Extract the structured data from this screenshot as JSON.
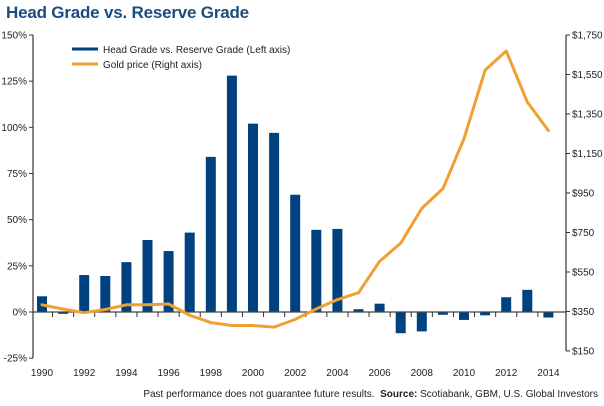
{
  "chart_data": {
    "type": "bar+line",
    "title": "Head Grade vs. Reserve Grade",
    "categories": [
      "1990",
      "1991",
      "1992",
      "1993",
      "1994",
      "1995",
      "1996",
      "1997",
      "1998",
      "1999",
      "2000",
      "2001",
      "2002",
      "2003",
      "2004",
      "2005",
      "2006",
      "2007",
      "2008",
      "2009",
      "2010",
      "2011",
      "2012",
      "2013",
      "2014"
    ],
    "x_tick_labels": [
      "1990",
      "1992",
      "1994",
      "1996",
      "1998",
      "2000",
      "2002",
      "2004",
      "2006",
      "2008",
      "2010",
      "2012",
      "2014"
    ],
    "series": [
      {
        "name": "Head Grade vs. Reserve Grade (Left axis)",
        "type": "bar",
        "axis": "left",
        "color": "#004280",
        "values": [
          8.5,
          -1,
          20,
          19.5,
          27,
          39,
          33,
          43,
          84,
          128,
          102,
          97,
          63.5,
          44.5,
          45,
          1.5,
          4.5,
          -11.5,
          -10.5,
          -1.5,
          -4.3,
          -1.8,
          8,
          12,
          -3
        ]
      },
      {
        "name": "Gold price (Right axis)",
        "type": "line",
        "axis": "right",
        "color": "#f0a030",
        "values": [
          384,
          362,
          344,
          360,
          384,
          384,
          388,
          331,
          294,
          279,
          279,
          271,
          310,
          363,
          410,
          445,
          604,
          696,
          872,
          972,
          1225,
          1572,
          1669,
          1411,
          1266
        ]
      }
    ],
    "left_axis": {
      "ylim": [
        -25,
        150
      ],
      "ticks": [
        -25,
        0,
        25,
        50,
        75,
        100,
        125,
        150
      ],
      "tick_labels": [
        "-25%",
        "0%",
        "25%",
        "50%",
        "75%",
        "100%",
        "125%",
        "150%"
      ]
    },
    "right_axis": {
      "ylim": [
        150,
        1750
      ],
      "ticks": [
        150,
        350,
        550,
        750,
        950,
        1150,
        1350,
        1550,
        1750
      ],
      "tick_labels": [
        "$150",
        "$350",
        "$550",
        "$750",
        "$950",
        "$1,150",
        "$1,350",
        "$1,550",
        "$1,750"
      ]
    },
    "legend": {
      "placement": "top-left",
      "entries": [
        "Head Grade vs. Reserve Grade (Left axis)",
        "Gold price (Right axis)"
      ]
    },
    "grid": false
  },
  "footer": {
    "disclaimer": "Past performance does not guarantee future results.",
    "source_label": "Source:",
    "source_text": "Scotiabank, GBM, U.S. Global Investors"
  }
}
